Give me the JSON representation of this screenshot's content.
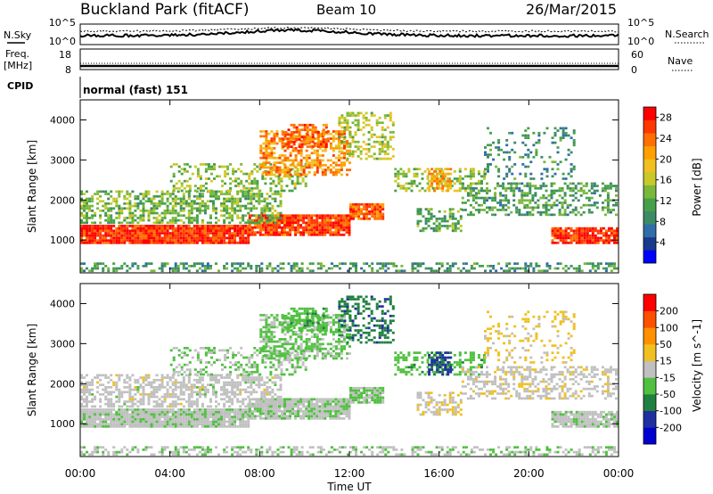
{
  "header": {
    "title": "Buckland Park (fitACF)",
    "beam": "Beam 10",
    "date": "26/Mar/2015"
  },
  "noise_panel": {
    "left_label": "N.Sky",
    "left_ticks": [
      "10^5",
      "10^0"
    ],
    "right_ticks": [
      "10^5",
      "10^0"
    ],
    "right_label": "N.Search"
  },
  "freq_panel": {
    "label_line1": "Freq.",
    "label_line2": "[MHz]",
    "left_ticks": [
      "18",
      "8"
    ],
    "right_ticks": [
      "60",
      "0"
    ],
    "right_label": "Nave"
  },
  "cpid_panel": {
    "label": "CPID",
    "value": "normal (fast) 151"
  },
  "chart_data": [
    {
      "type": "heatmap",
      "title": "",
      "xlabel": "Time UT",
      "ylabel": "Slant Range [km]",
      "x_ticks": [
        "00:00",
        "04:00",
        "08:00",
        "12:00",
        "16:00",
        "20:00",
        "00:00"
      ],
      "xlim_hours": [
        0,
        24
      ],
      "y_ticks": [
        1000,
        2000,
        3000,
        4000
      ],
      "ylim": [
        180,
        4500
      ],
      "colorbar": {
        "label": "Power [dB]",
        "ticks": [
          "4",
          "8",
          "12",
          "16",
          "20",
          "24",
          "28"
        ],
        "range": [
          0,
          30
        ],
        "colors": [
          "#0000ff",
          "#1a3a8c",
          "#2f6ea8",
          "#3d8a66",
          "#46a049",
          "#7ab83a",
          "#c8c82a",
          "#f0c020",
          "#ffa000",
          "#ff7000",
          "#ff3800",
          "#ff0000"
        ]
      }
    },
    {
      "type": "heatmap",
      "title": "",
      "xlabel": "Time UT",
      "ylabel": "Slant Range [km]",
      "x_ticks": [
        "00:00",
        "04:00",
        "08:00",
        "12:00",
        "16:00",
        "20:00",
        "00:00"
      ],
      "xlim_hours": [
        0,
        24
      ],
      "y_ticks": [
        1000,
        2000,
        3000,
        4000
      ],
      "ylim": [
        180,
        4500
      ],
      "colorbar": {
        "label": "Velocity [m s^-1]",
        "ticks": [
          "200",
          "100",
          "50",
          "15",
          "-15",
          "-50",
          "-100",
          "-200"
        ],
        "range": [
          -250,
          250
        ],
        "colors": [
          "#0000d0",
          "#2030a0",
          "#208040",
          "#50c040",
          "#c0c0c0",
          "#f0c020",
          "#ff9000",
          "#ff5000",
          "#ff0000"
        ]
      }
    }
  ]
}
